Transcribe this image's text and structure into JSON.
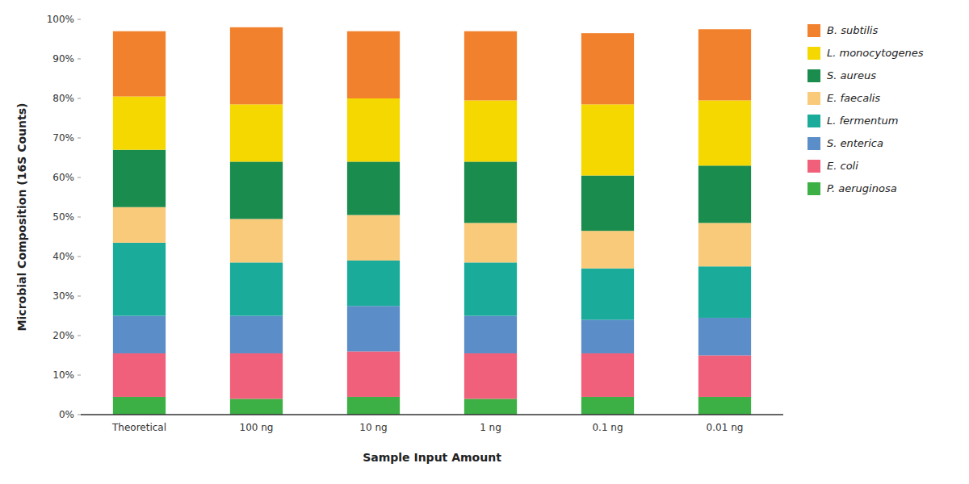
{
  "chart_data": {
    "type": "bar",
    "stacked": true,
    "categories": [
      "Theoretical",
      "100 ng",
      "10 ng",
      "1 ng",
      "0.1 ng",
      "0.01 ng"
    ],
    "series": [
      {
        "name": "P. aeruginosa",
        "color": "#3cb044",
        "values": [
          4.5,
          4.0,
          4.5,
          4.0,
          4.5,
          4.5
        ]
      },
      {
        "name": "E. coli",
        "color": "#f0607a",
        "values": [
          11.0,
          11.5,
          11.5,
          11.5,
          11.0,
          10.5
        ]
      },
      {
        "name": "S. enterica",
        "color": "#5b8dc8",
        "values": [
          9.5,
          9.5,
          11.5,
          9.5,
          8.5,
          9.5
        ]
      },
      {
        "name": "L. fermentum",
        "color": "#1aab9b",
        "values": [
          18.5,
          13.5,
          11.5,
          13.5,
          13.0,
          13.0
        ]
      },
      {
        "name": "E. faecalis",
        "color": "#f9ca7a",
        "values": [
          9.0,
          11.0,
          11.5,
          10.0,
          9.5,
          11.0
        ]
      },
      {
        "name": "S. aureus",
        "color": "#1a8c4e",
        "values": [
          14.5,
          14.5,
          13.5,
          15.5,
          14.0,
          14.5
        ]
      },
      {
        "name": "L. monocytogenes",
        "color": "#f5d800",
        "values": [
          13.5,
          14.5,
          16.0,
          15.5,
          18.0,
          16.5
        ]
      },
      {
        "name": "B. subtilis",
        "color": "#f2812d",
        "values": [
          16.5,
          19.5,
          17.0,
          17.5,
          18.0,
          18.0
        ]
      }
    ],
    "xlabel": "Sample Input Amount",
    "ylabel": "Microbial Composition (16S Counts)",
    "ylim": [
      0,
      100
    ],
    "yticks": [
      {
        "value": 0,
        "label": "0%"
      },
      {
        "value": 10,
        "label": "10%"
      },
      {
        "value": 20,
        "label": "20%"
      },
      {
        "value": 30,
        "label": "30%"
      },
      {
        "value": 40,
        "label": "40%"
      },
      {
        "value": 50,
        "label": "50%"
      },
      {
        "value": 60,
        "label": "60%"
      },
      {
        "value": 70,
        "label": "70%"
      },
      {
        "value": 80,
        "label": "80%"
      },
      {
        "value": 90,
        "label": "90%"
      },
      {
        "value": 100,
        "label": "100%"
      }
    ],
    "grid": false,
    "legend": "right"
  }
}
